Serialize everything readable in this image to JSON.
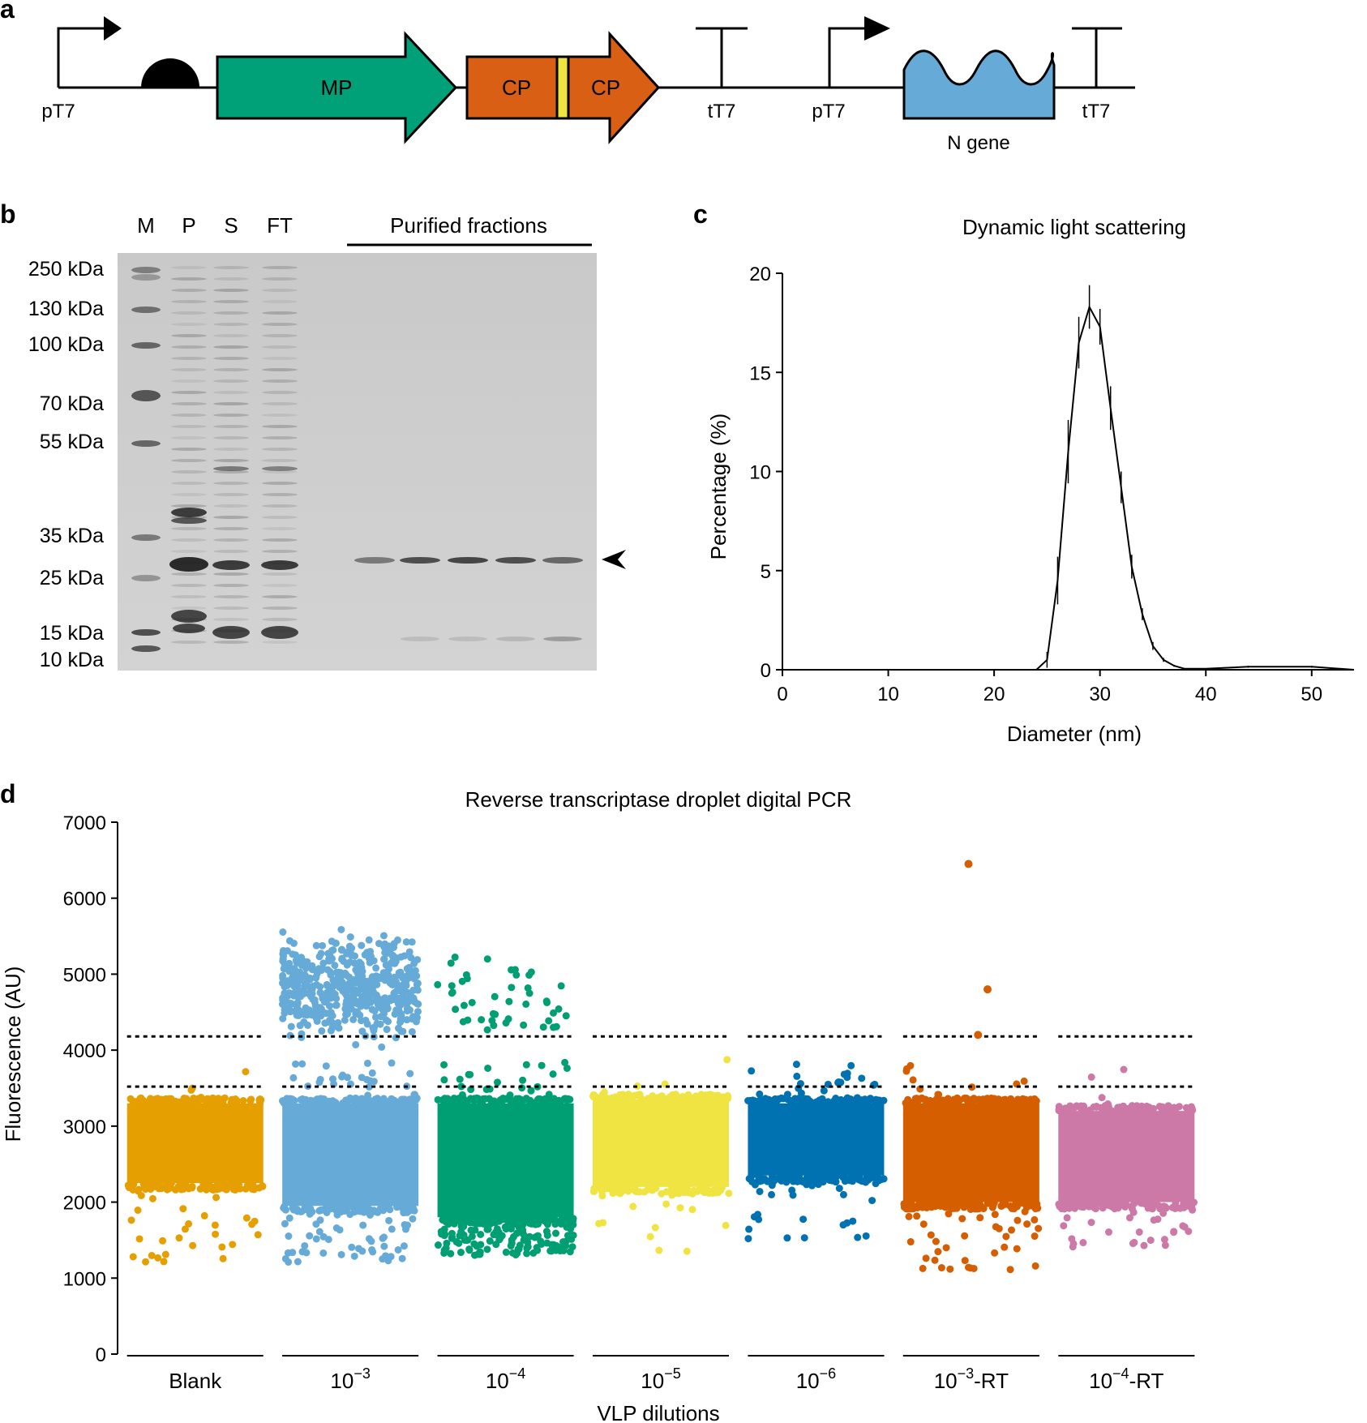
{
  "panels": {
    "a": {
      "letter": "a",
      "labels": {
        "pT7_1": "pT7",
        "MP": "MP",
        "CP_1": "CP",
        "CP_2": "CP",
        "tT7_1": "tT7",
        "pT7_2": "pT7",
        "N_gene": "N gene",
        "tT7_2": "tT7"
      },
      "colors": {
        "MP": "#00a078",
        "CP": "#d95f14",
        "linker": "#f0e442",
        "N": "#66aad8"
      }
    },
    "b": {
      "letter": "b",
      "lanes": [
        "M",
        "P",
        "S",
        "FT"
      ],
      "purified_label": "Purified fractions",
      "markers": [
        "250 kDa",
        "130 kDa",
        "100 kDa",
        "70 kDa",
        "55 kDa",
        "35 kDa",
        "25 kDa",
        "15 kDa",
        "10 kDa"
      ]
    },
    "c": {
      "letter": "c",
      "title": "Dynamic light scattering",
      "chart_data": {
        "type": "line",
        "title": "Dynamic light scattering",
        "xlabel": "Diameter (nm)",
        "ylabel": "Percentage (%)",
        "xlim": [
          0,
          54
        ],
        "ylim": [
          0,
          20
        ],
        "xticks": [
          "0",
          "10",
          "20",
          "30",
          "40",
          "50"
        ],
        "yticks": [
          "0",
          "5",
          "10",
          "15",
          "20"
        ],
        "x": [
          24,
          25,
          26,
          27,
          28,
          29,
          30,
          31,
          32,
          33,
          34,
          35,
          36,
          37,
          38,
          40,
          44,
          50,
          54
        ],
        "y": [
          0,
          0.5,
          4.5,
          11,
          16.5,
          18.3,
          17.3,
          13.2,
          9.2,
          5.2,
          2.8,
          1.2,
          0.5,
          0.2,
          0.05,
          0.05,
          0.15,
          0.15,
          0
        ],
        "err": [
          0,
          0.4,
          1.2,
          1.6,
          1.3,
          1.1,
          0.9,
          1.1,
          0.8,
          0.6,
          0.3,
          0.2,
          0.1,
          0.05,
          0.02,
          0.02,
          0.05,
          0.05,
          0
        ]
      }
    },
    "d": {
      "letter": "d",
      "title": "Reverse transcriptase droplet digital PCR",
      "chart_data": {
        "type": "scatter",
        "title": "Reverse transcriptase droplet digital PCR",
        "xlabel": "VLP dilutions",
        "ylabel": "Fluorescence (AU)",
        "ylim": [
          0,
          7000
        ],
        "yticks": [
          "0",
          "1000",
          "2000",
          "3000",
          "4000",
          "5000",
          "6000",
          "7000"
        ],
        "thresholds": [
          3520,
          4180
        ],
        "groups": [
          {
            "label": "Blank",
            "base": "",
            "exp": "",
            "suffix": "",
            "color": "#e69f00",
            "band_low": 2250,
            "band_high": 3300,
            "pos_low": null,
            "pos_high": null,
            "n_pos": 0,
            "n_low": 30,
            "low_min": 1200,
            "n_mid": 4
          },
          {
            "label": "10^-3",
            "base": "10",
            "exp": "−3",
            "suffix": "",
            "color": "#66aad8",
            "band_low": 1950,
            "band_high": 3300,
            "pos_low": 4300,
            "pos_high": 5300,
            "n_pos": 520,
            "n_low": 60,
            "low_min": 1200,
            "n_mid": 30
          },
          {
            "label": "10^-4",
            "base": "10",
            "exp": "−4",
            "suffix": "",
            "color": "#009e73",
            "band_low": 1800,
            "band_high": 3300,
            "pos_low": 4250,
            "pos_high": 5250,
            "n_pos": 45,
            "n_low": 150,
            "low_min": 1300,
            "n_mid": 28
          },
          {
            "label": "10^-5",
            "base": "10",
            "exp": "−5",
            "suffix": "",
            "color": "#f0e442",
            "band_low": 2200,
            "band_high": 3350,
            "pos_low": null,
            "pos_high": null,
            "n_pos": 0,
            "n_low": 14,
            "low_min": 1350,
            "n_mid": 5
          },
          {
            "label": "10^-6",
            "base": "10",
            "exp": "−6",
            "suffix": "",
            "color": "#0072b2",
            "band_low": 2350,
            "band_high": 3300,
            "pos_low": null,
            "pos_high": null,
            "n_pos": 0,
            "n_low": 30,
            "low_min": 1500,
            "n_mid": 26
          },
          {
            "label": "10^-3-RT",
            "base": "10",
            "exp": "−3",
            "suffix": "-RT",
            "color": "#d55e00",
            "band_low": 2000,
            "band_high": 3300,
            "pos_low": null,
            "pos_high": null,
            "n_pos": 0,
            "n_low": 40,
            "low_min": 1100,
            "n_mid": 12
          },
          {
            "label": "10^-4-RT",
            "base": "10",
            "exp": "−4",
            "suffix": "-RT",
            "color": "#cc79a7",
            "band_low": 2000,
            "band_high": 3200,
            "pos_low": null,
            "pos_high": null,
            "n_pos": 0,
            "n_low": 30,
            "low_min": 1400,
            "n_mid": 4
          }
        ],
        "outliers": [
          {
            "group": "10^-3-RT",
            "values": [
              6450,
              4800,
              4200
            ]
          }
        ]
      }
    }
  }
}
